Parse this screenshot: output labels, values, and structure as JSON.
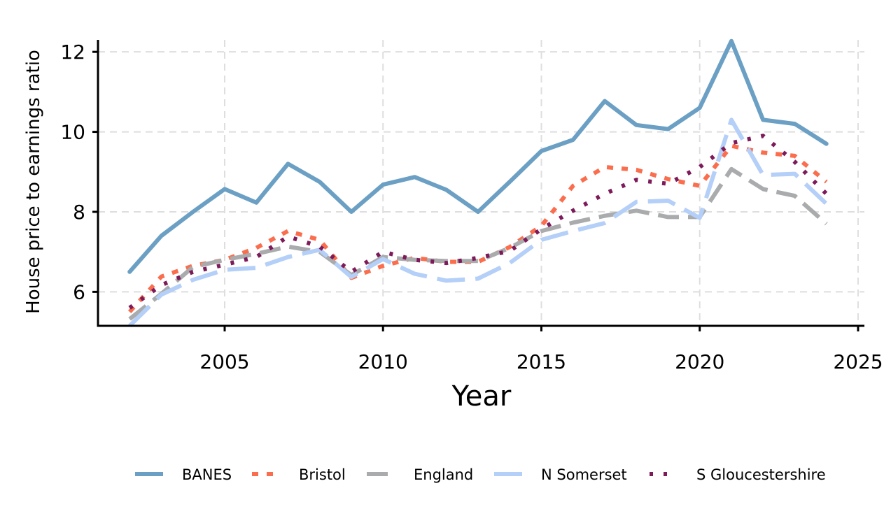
{
  "chart_data": {
    "type": "line",
    "title": "",
    "xlabel": "Year",
    "ylabel": "House price to earnings ratio",
    "xlim": [
      2001,
      2025.2
    ],
    "ylim": [
      5.15,
      12.3
    ],
    "xticks": [
      2005,
      2010,
      2015,
      2020,
      2025
    ],
    "yticks": [
      6,
      8,
      10,
      12
    ],
    "grid": true,
    "legend_position": "bottom",
    "x": [
      2002,
      2003,
      2004,
      2005,
      2006,
      2007,
      2008,
      2009,
      2010,
      2011,
      2012,
      2013,
      2014,
      2015,
      2016,
      2017,
      2018,
      2019,
      2020,
      2021,
      2022,
      2023,
      2024
    ],
    "series": [
      {
        "name": "BANES",
        "color": "#6ba0c4",
        "dash": "solid",
        "values": [
          6.5,
          7.4,
          8.0,
          8.57,
          8.23,
          9.2,
          8.75,
          8.0,
          8.68,
          8.87,
          8.55,
          8.0,
          8.75,
          9.52,
          9.8,
          10.77,
          10.17,
          10.07,
          10.6,
          12.27,
          10.3,
          10.2,
          9.7
        ]
      },
      {
        "name": "Bristol",
        "color": "#fa6e4e",
        "dash": "dot",
        "values": [
          5.5,
          6.38,
          6.65,
          6.8,
          7.1,
          7.52,
          7.3,
          6.35,
          6.65,
          6.85,
          6.75,
          6.75,
          7.12,
          7.65,
          8.65,
          9.12,
          9.05,
          8.82,
          8.65,
          9.65,
          9.48,
          9.4,
          8.75
        ]
      },
      {
        "name": "England",
        "color": "#a9abad",
        "dash": "dash",
        "values": [
          5.32,
          5.95,
          6.62,
          6.8,
          6.95,
          7.13,
          7.0,
          6.42,
          6.87,
          6.8,
          6.77,
          6.77,
          7.1,
          7.52,
          7.73,
          7.9,
          8.03,
          7.87,
          7.87,
          9.07,
          8.57,
          8.4,
          7.7
        ]
      },
      {
        "name": "N Somerset",
        "color": "#b4cff8",
        "dash": "longdash",
        "values": [
          5.15,
          5.93,
          6.3,
          6.55,
          6.6,
          6.87,
          7.05,
          6.37,
          6.82,
          6.45,
          6.28,
          6.33,
          6.72,
          7.3,
          7.52,
          7.72,
          8.25,
          8.28,
          7.85,
          10.3,
          8.92,
          8.95,
          8.2
        ]
      },
      {
        "name": "S Gloucestershire",
        "color": "#7d1a5a",
        "dash": "dotted",
        "values": [
          5.6,
          6.17,
          6.5,
          6.68,
          6.87,
          7.38,
          7.13,
          6.5,
          7.0,
          6.8,
          6.72,
          6.85,
          7.02,
          7.57,
          8.03,
          8.45,
          8.8,
          8.7,
          9.12,
          9.72,
          9.9,
          9.25,
          8.45
        ]
      }
    ]
  }
}
